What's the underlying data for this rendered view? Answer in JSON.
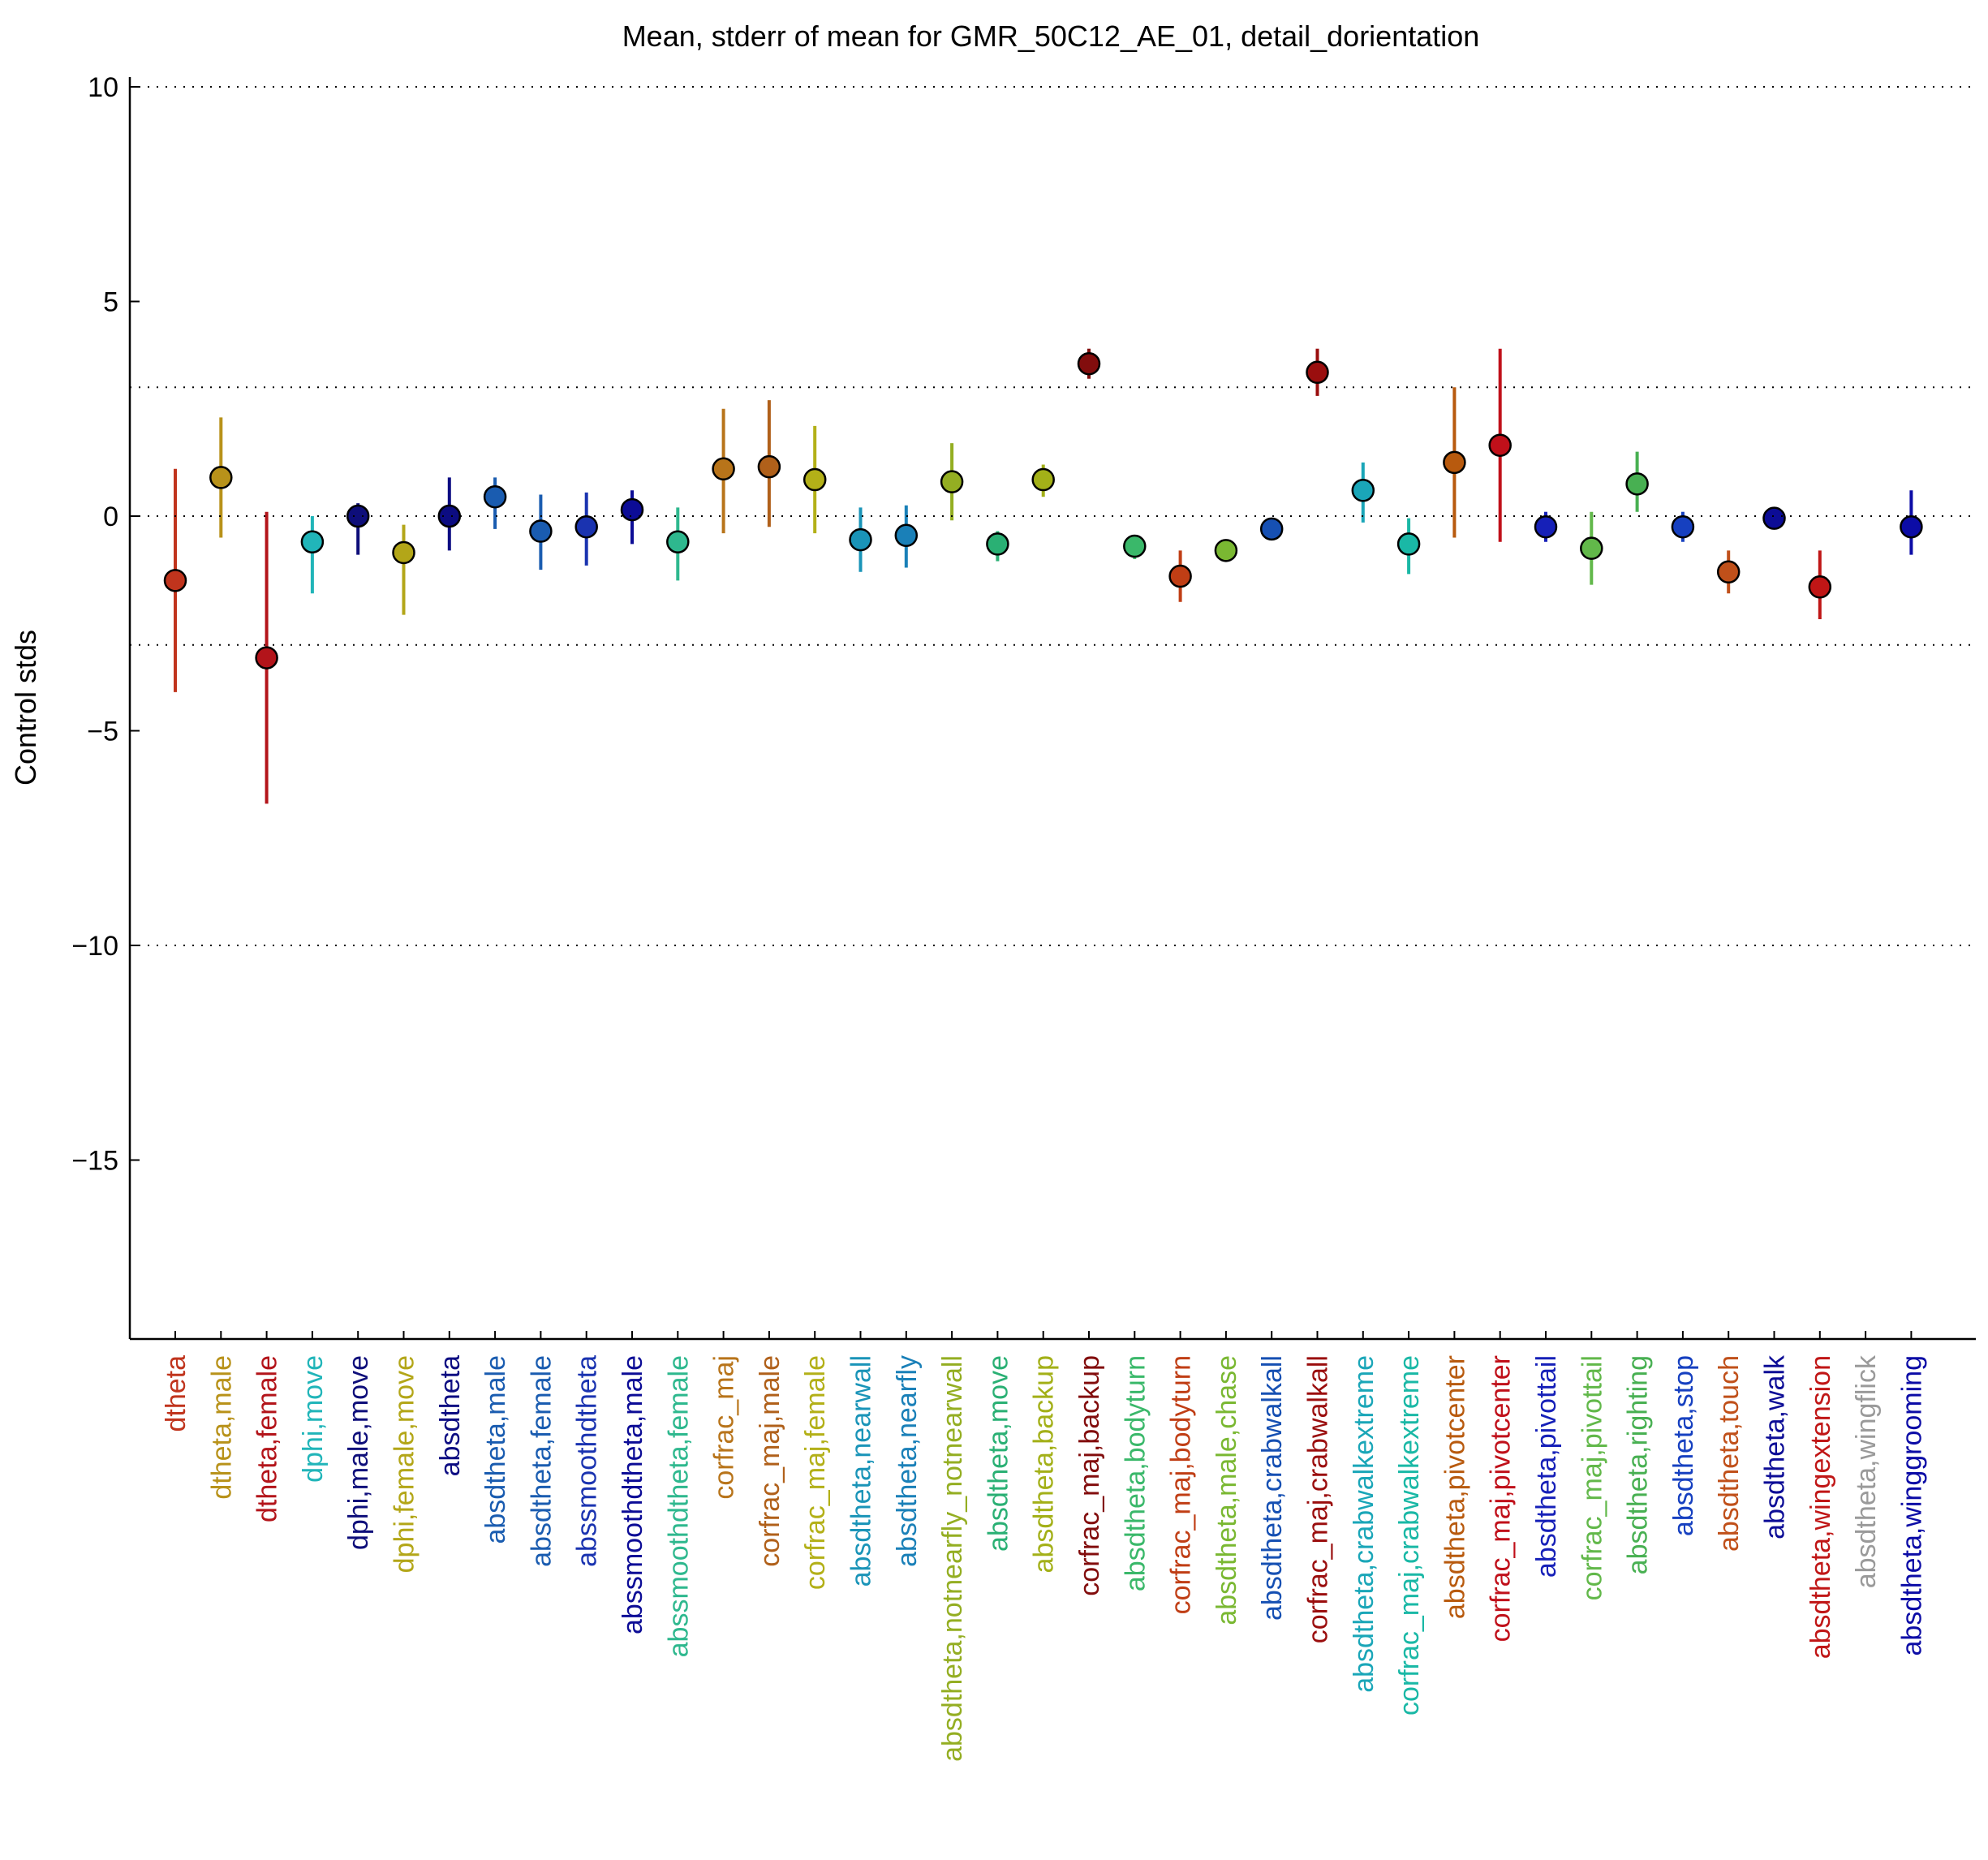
{
  "chart_data": {
    "type": "scatter",
    "title": "Mean, stderr of mean for GMR_50C12_AE_01, detail_dorientation",
    "xlabel": "",
    "ylabel": "Control stds",
    "ylim": [
      -19,
      10.3
    ],
    "yticks": [
      10,
      5,
      0,
      -5,
      -10,
      -15
    ],
    "reference_lines": [
      10,
      3,
      -3,
      -10
    ],
    "grid": false,
    "legend": "none",
    "categories": [
      "dtheta",
      "dtheta,male",
      "dtheta,female",
      "dphi,move",
      "dphi,male,move",
      "dphi,female,move",
      "absdtheta",
      "absdtheta,male",
      "absdtheta,female",
      "abssmoothdtheta",
      "abssmoothdtheta,male",
      "abssmoothdtheta,female",
      "corfrac_maj",
      "corfrac_maj,male",
      "corfrac_maj,female",
      "absdtheta,nearwall",
      "absdtheta,nearfly",
      "absdtheta,notnearfly_notnearwall",
      "absdtheta,move",
      "absdtheta,backup",
      "corfrac_maj,backup",
      "absdtheta,bodyturn",
      "corfrac_maj,bodyturn",
      "absdtheta,male,chase",
      "absdtheta,crabwalkall",
      "corfrac_maj,crabwalkall",
      "absdtheta,crabwalkextreme",
      "corfrac_maj,crabwalkextreme",
      "absdtheta,pivotcenter",
      "corfrac_maj,pivotcenter",
      "absdtheta,pivottail",
      "corfrac_maj,pivottail",
      "absdtheta,righting",
      "absdtheta,stop",
      "absdtheta,touch",
      "absdtheta,walk",
      "absdtheta,wingextension",
      "absdtheta,wingflick",
      "absdtheta,winggrooming"
    ],
    "colors": [
      "#c0341d",
      "#b8921a",
      "#b3141a",
      "#21b5b9",
      "#0e0e7a",
      "#b3a618",
      "#0c0c82",
      "#1a5cb0",
      "#1a5cb0",
      "#1a33b0",
      "#0c0c96",
      "#2eb88e",
      "#b8741a",
      "#b0601a",
      "#b3b018",
      "#1a94b8",
      "#1a80b8",
      "#94ae22",
      "#2ab074",
      "#a3b018",
      "#820d0d",
      "#3ab86a",
      "#c03e15",
      "#7ab832",
      "#1650b3",
      "#9a0e0e",
      "#1aa6b8",
      "#1ab8a6",
      "#b85a0e",
      "#c0101a",
      "#1620b8",
      "#62b84a",
      "#48b052",
      "#1640c0",
      "#c0501a",
      "#0c0c96",
      "#c01616",
      "#9a9a9a",
      "#0c0ca6"
    ],
    "series": [
      {
        "values": [
          -1.5,
          0.9,
          -3.3,
          -0.6,
          0.0,
          -0.85,
          0.0,
          0.45,
          -0.35,
          -0.25,
          0.15,
          -0.6,
          1.1,
          1.15,
          0.85,
          -0.55,
          -0.45,
          0.8,
          -0.65,
          0.85,
          3.55,
          -0.7,
          -1.4,
          -0.8,
          -0.3,
          3.35,
          0.6,
          -0.65,
          1.25,
          1.65,
          -0.25,
          -0.75,
          0.75,
          -0.25,
          -1.3,
          -0.05,
          -1.65,
          null,
          -0.25
        ]
      },
      {
        "values": [
          1.1,
          2.3,
          0.1,
          0.0,
          0.3,
          -0.2,
          0.9,
          0.9,
          0.5,
          0.55,
          0.6,
          0.2,
          2.5,
          2.7,
          2.1,
          0.2,
          0.25,
          1.7,
          -0.35,
          1.2,
          3.9,
          -0.5,
          -0.8,
          -0.6,
          -0.1,
          3.9,
          1.25,
          -0.05,
          3.0,
          3.9,
          0.1,
          0.1,
          1.5,
          0.1,
          -0.8,
          0.2,
          -0.8,
          null,
          0.6
        ]
      },
      {
        "values": [
          -4.1,
          -0.5,
          -6.7,
          -1.8,
          -0.9,
          -2.3,
          -0.8,
          -0.3,
          -1.25,
          -1.15,
          -0.65,
          -1.5,
          -0.4,
          -0.25,
          -0.4,
          -1.3,
          -1.2,
          -0.1,
          -1.05,
          0.45,
          3.2,
          -1.0,
          -2.0,
          -1.0,
          -0.45,
          2.8,
          -0.15,
          -1.35,
          -0.5,
          -0.6,
          -0.6,
          -1.6,
          0.1,
          -0.6,
          -1.8,
          -0.25,
          -2.4,
          null,
          -0.9
        ]
      }
    ]
  }
}
